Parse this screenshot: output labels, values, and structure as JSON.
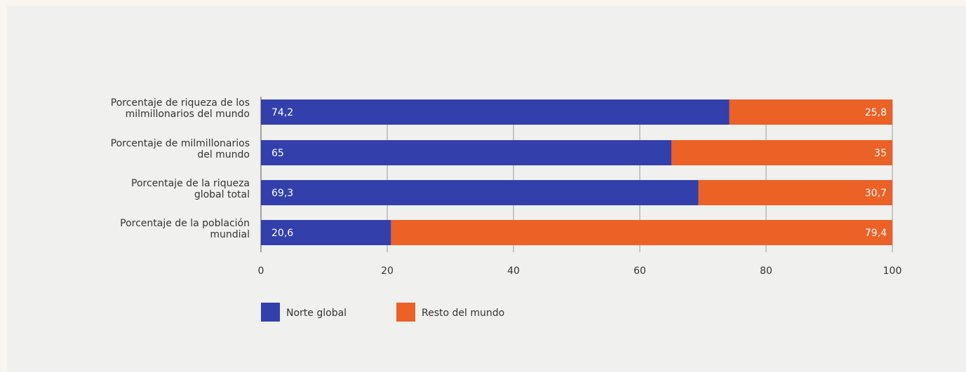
{
  "chart_data": {
    "type": "bar",
    "orientation": "horizontal",
    "stacked": true,
    "categories": [
      [
        "Porcentaje de riqueza de los",
        "milmillonarios del mundo"
      ],
      [
        "Porcentaje de milmillonarios",
        "del mundo"
      ],
      [
        "Porcentaje de la riqueza",
        "global total"
      ],
      [
        "Porcentaje de la población",
        "mundial"
      ]
    ],
    "series": [
      {
        "name": "Norte global",
        "color": "#3340ab",
        "values": [
          74.2,
          65,
          69.3,
          20.6
        ],
        "labels": [
          "74,2",
          "65",
          "69,3",
          "20,6"
        ]
      },
      {
        "name": "Resto del mundo",
        "color": "#ec6125",
        "values": [
          25.8,
          35,
          30.7,
          79.4
        ],
        "labels": [
          "25,8",
          "35",
          "30,7",
          "79,4"
        ]
      }
    ],
    "xlim": [
      0,
      100
    ],
    "xticks": [
      0,
      20,
      40,
      60,
      80,
      100
    ],
    "grid": true,
    "legend_position": "bottom-left"
  }
}
